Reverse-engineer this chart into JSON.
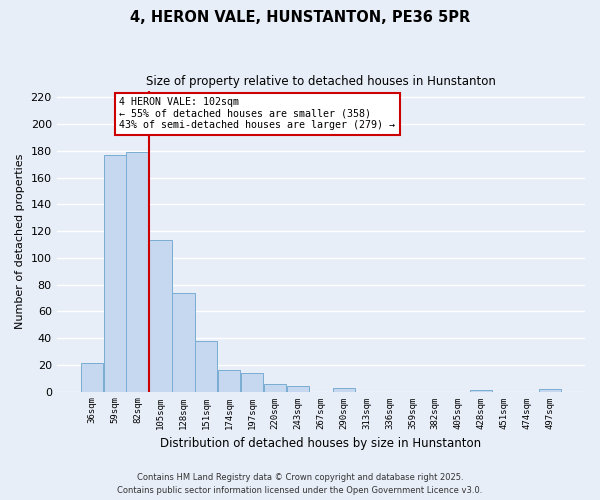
{
  "title": "4, HERON VALE, HUNSTANTON, PE36 5PR",
  "subtitle": "Size of property relative to detached houses in Hunstanton",
  "xlabel": "Distribution of detached houses by size in Hunstanton",
  "ylabel": "Number of detached properties",
  "bar_color": "#c5d8f0",
  "bar_edgecolor": "#7aadd4",
  "categories": [
    "36sqm",
    "59sqm",
    "82sqm",
    "105sqm",
    "128sqm",
    "151sqm",
    "174sqm",
    "197sqm",
    "220sqm",
    "243sqm",
    "267sqm",
    "290sqm",
    "313sqm",
    "336sqm",
    "359sqm",
    "382sqm",
    "405sqm",
    "428sqm",
    "451sqm",
    "474sqm",
    "497sqm"
  ],
  "values": [
    21,
    177,
    179,
    113,
    74,
    38,
    16,
    14,
    6,
    4,
    0,
    3,
    0,
    0,
    0,
    0,
    0,
    1,
    0,
    0,
    2
  ],
  "vline_index": 2.5,
  "vline_color": "#cc0000",
  "annotation_title": "4 HERON VALE: 102sqm",
  "annotation_line1": "← 55% of detached houses are smaller (358)",
  "annotation_line2": "43% of semi-detached houses are larger (279) →",
  "annotation_box_facecolor": "white",
  "annotation_box_edgecolor": "#cc0000",
  "ylim": [
    0,
    225
  ],
  "yticks": [
    0,
    20,
    40,
    60,
    80,
    100,
    120,
    140,
    160,
    180,
    200,
    220
  ],
  "footnote1": "Contains HM Land Registry data © Crown copyright and database right 2025.",
  "footnote2": "Contains public sector information licensed under the Open Government Licence v3.0.",
  "background_color": "#e8eef8",
  "plot_bg_color": "#e8eef8",
  "grid_color": "#ffffff"
}
